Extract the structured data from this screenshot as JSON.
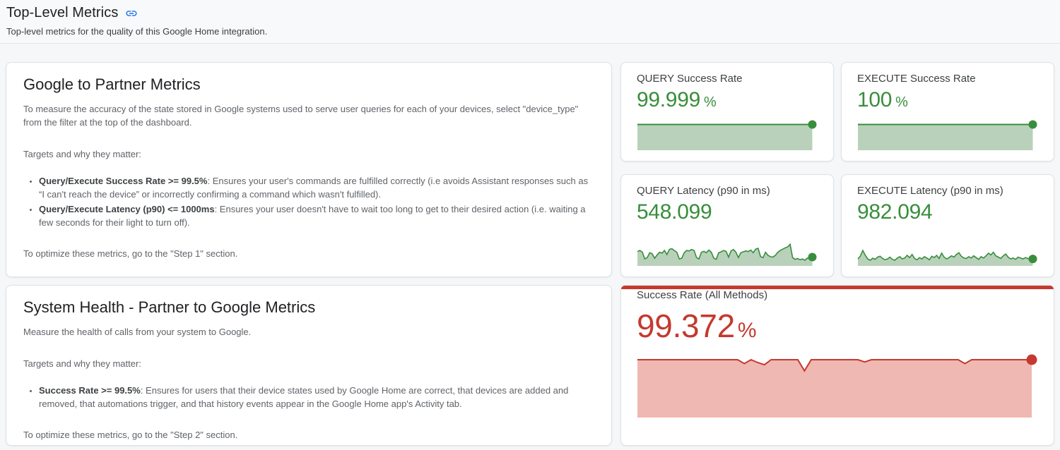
{
  "header": {
    "title": "Top-Level Metrics",
    "link_icon": "link-anchor",
    "subtitle": "Top-level metrics for the quality of this Google Home integration."
  },
  "google_to_partner": {
    "title": "Google to Partner Metrics",
    "intro": "To measure the accuracy of the state stored in Google systems used to serve user queries for each of your devices, select \"device_type\" from the filter at the top of the dashboard.",
    "targets_label": "Targets and why they matter:",
    "bullets": [
      {
        "lead": "Query/Execute Success Rate >= 99.5%",
        "text": ": Ensures your user's commands are fulfilled correctly (i.e avoids Assistant responses such as “I can't reach the device” or incorrectly confirming a command which wasn't fulfilled)."
      },
      {
        "lead": "Query/Execute Latency (p90) <= 1000ms",
        "text": ": Ensures your user doesn't have to wait too long to get to their desired action (i.e. waiting a few seconds for their light to turn off)."
      }
    ],
    "footer": "To optimize these metrics, go to the \"Step 1\" section."
  },
  "system_health": {
    "title": "System Health - Partner to Google Metrics",
    "intro": "Measure the health of calls from your system to Google.",
    "targets_label": "Targets and why they matter:",
    "bullets": [
      {
        "lead": "Success Rate >= 99.5%",
        "text": ": Ensures for users that their device states used by Google Home are correct, that devices are added and removed, that automations trigger, and that history events appear in the Google Home app's Activity tab."
      }
    ],
    "footer": "To optimize these metrics, go to the \"Step 2\" section."
  },
  "metrics": {
    "query_success": {
      "label": "QUERY Success Rate",
      "value": "99.999",
      "unit": "%"
    },
    "execute_success": {
      "label": "EXECUTE Success Rate",
      "value": "100",
      "unit": "%"
    },
    "query_latency": {
      "label": "QUERY Latency (p90 in ms)",
      "value": "548.099",
      "unit": ""
    },
    "execute_latency": {
      "label": "EXECUTE Latency (p90 in ms)",
      "value": "982.094",
      "unit": ""
    },
    "all_methods": {
      "label": "Success Rate (All Methods)",
      "value": "99.372",
      "unit": "%"
    }
  },
  "colors": {
    "good_green": "#388e3c",
    "good_green_fill": "#b9d1ba",
    "bad_red": "#c5392e",
    "bad_red_fill": "#efb8b2",
    "link_blue": "#1a73e8"
  },
  "chart_data": [
    {
      "id": "query_success_spark",
      "type": "area",
      "title": "QUERY Success Rate sparkline",
      "current_value": 99.999,
      "unit": "%",
      "grid": false,
      "axes": false,
      "end_dot": true,
      "color": "#388e3c",
      "fill": "#b9d1ba",
      "dot_r": 6,
      "stroke_width": 2,
      "points": [
        1,
        1
      ]
    },
    {
      "id": "execute_success_spark",
      "type": "area",
      "title": "EXECUTE Success Rate sparkline",
      "current_value": 100,
      "unit": "%",
      "grid": false,
      "axes": false,
      "end_dot": true,
      "color": "#388e3c",
      "fill": "#b9d1ba",
      "dot_r": 6,
      "stroke_width": 2,
      "points": [
        1,
        1
      ]
    },
    {
      "id": "query_latency_spark",
      "type": "area",
      "title": "QUERY Latency (p90 in ms) sparkline",
      "current_value": 548.099,
      "unit": "ms",
      "grid": false,
      "axes": false,
      "end_dot": true,
      "color": "#388e3c",
      "fill": "#b9d1ba",
      "dot_r": 6,
      "stroke_width": 1.6,
      "points": [
        0.55,
        0.6,
        0.52,
        0.22,
        0.28,
        0.5,
        0.45,
        0.25,
        0.4,
        0.52,
        0.48,
        0.6,
        0.42,
        0.65,
        0.68,
        0.6,
        0.52,
        0.22,
        0.25,
        0.5,
        0.6,
        0.58,
        0.64,
        0.6,
        0.28,
        0.22,
        0.52,
        0.56,
        0.5,
        0.62,
        0.52,
        0.25,
        0.2,
        0.5,
        0.54,
        0.6,
        0.56,
        0.3,
        0.58,
        0.64,
        0.52,
        0.28,
        0.5,
        0.54,
        0.58,
        0.55,
        0.62,
        0.5,
        0.66,
        0.7,
        0.32,
        0.28,
        0.52,
        0.38,
        0.32,
        0.3,
        0.38,
        0.52,
        0.6,
        0.66,
        0.72,
        0.76,
        0.88,
        0.28,
        0.2,
        0.24,
        0.18,
        0.22,
        0.16,
        0.26,
        0.22,
        0.3
      ]
    },
    {
      "id": "execute_latency_spark",
      "type": "area",
      "title": "EXECUTE Latency (p90 in ms) sparkline",
      "current_value": 982.094,
      "unit": "ms",
      "grid": false,
      "axes": false,
      "end_dot": true,
      "color": "#388e3c",
      "fill": "#b9d1ba",
      "dot_r": 6,
      "stroke_width": 1.6,
      "points": [
        0.22,
        0.35,
        0.6,
        0.38,
        0.22,
        0.16,
        0.25,
        0.2,
        0.3,
        0.34,
        0.24,
        0.18,
        0.22,
        0.3,
        0.2,
        0.16,
        0.26,
        0.32,
        0.22,
        0.26,
        0.38,
        0.28,
        0.42,
        0.24,
        0.18,
        0.28,
        0.22,
        0.32,
        0.26,
        0.18,
        0.34,
        0.28,
        0.38,
        0.24,
        0.48,
        0.3,
        0.22,
        0.28,
        0.36,
        0.3,
        0.42,
        0.5,
        0.34,
        0.26,
        0.24,
        0.32,
        0.26,
        0.36,
        0.28,
        0.2,
        0.32,
        0.26,
        0.36,
        0.48,
        0.4,
        0.52,
        0.36,
        0.3,
        0.24,
        0.36,
        0.44,
        0.3,
        0.22,
        0.26,
        0.2,
        0.3,
        0.26,
        0.22,
        0.28,
        0.24,
        0.18,
        0.22
      ]
    },
    {
      "id": "all_methods_spark",
      "type": "area",
      "title": "Success Rate (All Methods) sparkline",
      "current_value": 99.372,
      "unit": "%",
      "grid": false,
      "axes": false,
      "end_dot": true,
      "color": "#c5392e",
      "fill": "#efb8b2",
      "dot_r": 7.5,
      "stroke_width": 2,
      "points": [
        1,
        1,
        1,
        1,
        1,
        1,
        1,
        1,
        1,
        1,
        1,
        1,
        1,
        1,
        1,
        1,
        0.93,
        1,
        0.95,
        0.91,
        1,
        1,
        1,
        1,
        1,
        0.8,
        1,
        1,
        1,
        1,
        1,
        1,
        1,
        1,
        0.96,
        1,
        1,
        1,
        1,
        1,
        1,
        1,
        1,
        1,
        1,
        1,
        1,
        1,
        1,
        0.93,
        1,
        1,
        1,
        1,
        1,
        1,
        1,
        1,
        1,
        1
      ]
    }
  ]
}
